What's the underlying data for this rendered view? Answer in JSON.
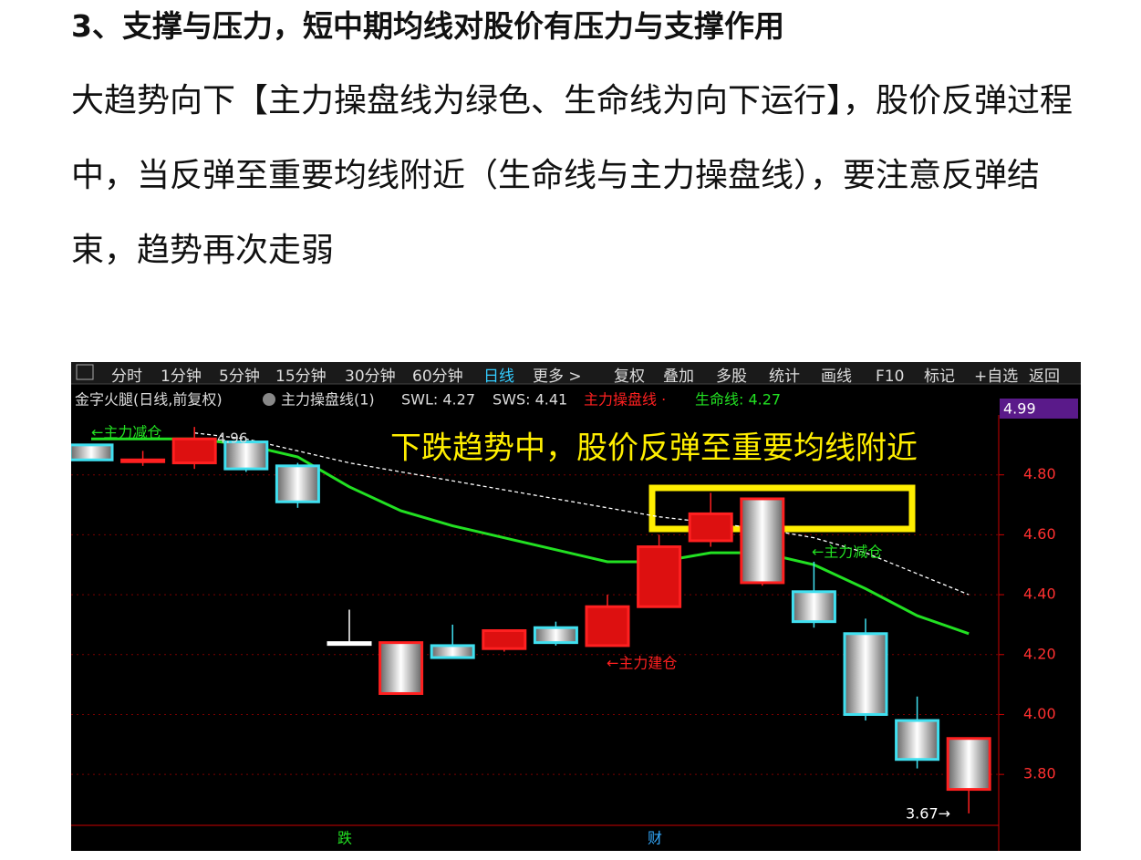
{
  "document": {
    "heading": "3、支撑与压力，短中期均线对股价有压力与支撑作用",
    "paragraph": "大趋势向下【主力操盘线为绿色、生命线为向下运行】，股价反弹过程中，当反弹至重要均线附近（生命线与主力操盘线），要注意反弹结束，趋势再次走弱"
  },
  "toolbar": {
    "items": [
      "分时",
      "1分钟",
      "5分钟",
      "15分钟",
      "30分钟",
      "60分钟",
      "日线",
      "更多 >",
      "复权",
      "叠加",
      "多股",
      "统计",
      "画线",
      "F10",
      "标记",
      "+自选",
      "返回"
    ],
    "active": 6
  },
  "indicator_bar": {
    "stock": "金字火腿(日线,前复权)",
    "indicator": "主力操盘线(1)",
    "swl": "SWL: 4.27",
    "sws": "SWS: 4.41",
    "line1": "主力操盘线 ·",
    "line2": "生命线: 4.27"
  },
  "chart_data": {
    "type": "candlestick",
    "open": [
      4.9,
      4.85,
      4.84,
      4.91,
      4.83,
      4.24,
      4.24,
      4.23,
      4.22,
      4.29,
      4.23,
      4.36,
      4.58,
      4.72,
      4.41,
      4.27,
      3.98,
      3.92
    ],
    "high": [
      4.9,
      4.88,
      4.96,
      4.92,
      4.84,
      4.35,
      4.24,
      4.3,
      4.28,
      4.31,
      4.4,
      4.6,
      4.74,
      4.72,
      4.51,
      4.32,
      4.06,
      3.92
    ],
    "low": [
      4.85,
      4.83,
      4.82,
      4.81,
      4.69,
      4.24,
      4.07,
      4.19,
      4.21,
      4.23,
      4.23,
      4.36,
      4.56,
      4.43,
      4.29,
      3.98,
      3.82,
      3.67
    ],
    "close": [
      4.85,
      4.85,
      4.92,
      4.82,
      4.71,
      4.24,
      4.07,
      4.19,
      4.28,
      4.24,
      4.36,
      4.56,
      4.67,
      4.44,
      4.31,
      4.0,
      3.85,
      3.75
    ],
    "colors": [
      "#40e0f0",
      "#ff2020",
      "#ff2020",
      "#40e0f0",
      "#40e0f0",
      "#ffffff",
      "#ff2020",
      "#40e0f0",
      "#ff2020",
      "#40e0f0",
      "#ff2020",
      "#ff2020",
      "#ff2020",
      "#ff2020",
      "#40e0f0",
      "#40e0f0",
      "#40e0f0",
      "#ff2020"
    ],
    "lines": [
      {
        "color": "#22e022",
        "dashed": false,
        "values": [
          4.92,
          4.92,
          4.92,
          4.9,
          4.86,
          4.76,
          4.68,
          4.63,
          4.59,
          4.55,
          4.51,
          4.51,
          4.54,
          4.54,
          4.5,
          4.42,
          4.33,
          4.27
        ]
      },
      {
        "color": "#ffffff",
        "dashed": true,
        "values": [
          null,
          null,
          4.94,
          4.92,
          4.88,
          4.84,
          4.81,
          4.78,
          4.75,
          4.72,
          4.69,
          4.66,
          4.64,
          4.62,
          4.59,
          4.54,
          4.47,
          4.4
        ]
      }
    ],
    "ylim": [
      3.63,
      5.0
    ],
    "yticks": [
      {
        "value": 3.8,
        "label": "3.80"
      },
      {
        "value": 4.0,
        "label": "4.00"
      },
      {
        "value": 4.2,
        "label": "4.20"
      },
      {
        "value": 4.4,
        "label": "4.40"
      },
      {
        "value": 4.6,
        "label": "4.60"
      },
      {
        "value": 4.8,
        "label": "4.80"
      }
    ],
    "grid": true,
    "price_tag": "4.99",
    "headline": "下跌趋势中，股价反弹至重要均线附近",
    "annotations": [
      "←主力减仓",
      "4.96",
      "←主力减仓",
      "←主力建仓",
      "3.67→",
      "跌",
      "财"
    ]
  }
}
